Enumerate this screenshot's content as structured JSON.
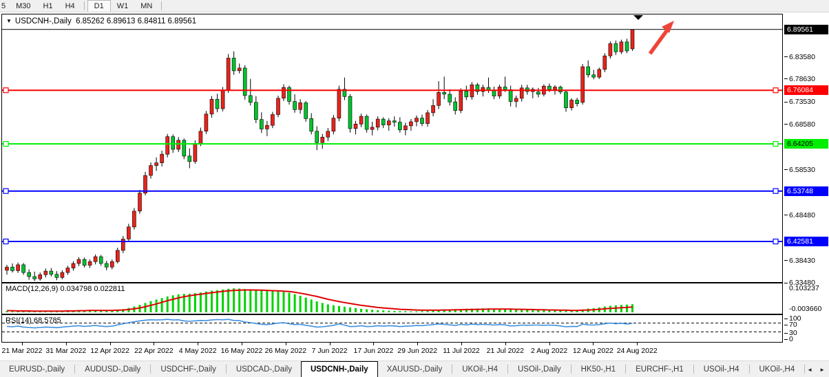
{
  "toolbar": {
    "timeframes": [
      {
        "label": "5",
        "active": false
      },
      {
        "label": "M30",
        "active": false
      },
      {
        "label": "H1",
        "active": false
      },
      {
        "label": "H4",
        "active": false
      },
      {
        "label": "D1",
        "active": true
      },
      {
        "label": "W1",
        "active": false
      },
      {
        "label": "MN",
        "active": false
      }
    ]
  },
  "chart": {
    "title_symbol": "USDCNH-,Daily",
    "title_ohlc": "6.85262 6.89613 6.84811 6.89561",
    "dropdown_icon": "▼",
    "current_price": {
      "value": 6.89561,
      "label": "6.89561",
      "badge_bg": "#000000",
      "badge_text": "#ffffff"
    },
    "colors": {
      "bull_candle": "#e8241c",
      "bear_candle": "#00c32e",
      "wick": "#000000",
      "arrow_annotation": "#ef4438"
    },
    "y_axis_ticks": [
      6.8358,
      6.7863,
      6.7353,
      6.6858,
      6.5853,
      6.4848,
      6.3843,
      6.3348
    ],
    "hlines": [
      {
        "price": 6.76084,
        "label": "6.76084",
        "color": "#ff0000",
        "text": "#ffffff"
      },
      {
        "price": 6.64205,
        "label": "6.64205",
        "color": "#00ee00",
        "text": "#000000"
      },
      {
        "price": 6.53748,
        "label": "6.53748",
        "color": "#0000ff",
        "text": "#ffffff"
      },
      {
        "price": 6.42581,
        "label": "6.42581",
        "color": "#0000ff",
        "text": "#ffffff"
      }
    ],
    "x_axis_dates": [
      "21 Mar 2022",
      "31 Mar 2022",
      "12 Apr 2022",
      "22 Apr 2022",
      "4 May 2022",
      "16 May 2022",
      "26 May 2022",
      "7 Jun 2022",
      "17 Jun 2022",
      "29 Jun 2022",
      "11 Jul 2022",
      "21 Jul 2022",
      "2 Aug 2022",
      "12 Aug 2022",
      "24 Aug 2022"
    ]
  },
  "chart_data": {
    "type": "candlestick+indicators",
    "title": "USDCNH-,Daily",
    "ohlc_current": {
      "open": 6.85262,
      "high": 6.89613,
      "low": 6.84811,
      "close": 6.89561
    },
    "ylim": [
      6.3348,
      6.9288
    ],
    "xlabels": [
      "21 Mar 2022",
      "31 Mar 2022",
      "12 Apr 2022",
      "22 Apr 2022",
      "4 May 2022",
      "16 May 2022",
      "26 May 2022",
      "7 Jun 2022",
      "17 Jun 2022",
      "29 Jun 2022",
      "11 Jul 2022",
      "21 Jul 2022",
      "2 Aug 2022",
      "12 Aug 2022",
      "24 Aug 2022"
    ],
    "candles": [
      [
        6.362,
        6.374,
        6.352,
        6.369
      ],
      [
        6.369,
        6.377,
        6.357,
        6.361
      ],
      [
        6.361,
        6.379,
        6.356,
        6.374
      ],
      [
        6.374,
        6.378,
        6.352,
        6.357
      ],
      [
        6.357,
        6.364,
        6.341,
        6.348
      ],
      [
        6.348,
        6.359,
        6.338,
        6.343
      ],
      [
        6.343,
        6.357,
        6.339,
        6.352
      ],
      [
        6.352,
        6.366,
        6.346,
        6.36
      ],
      [
        6.36,
        6.367,
        6.348,
        6.353
      ],
      [
        6.353,
        6.36,
        6.34,
        6.346
      ],
      [
        6.346,
        6.362,
        6.342,
        6.357
      ],
      [
        6.357,
        6.372,
        6.352,
        6.367
      ],
      [
        6.367,
        6.382,
        6.361,
        6.377
      ],
      [
        6.377,
        6.391,
        6.371,
        6.386
      ],
      [
        6.386,
        6.39,
        6.368,
        6.373
      ],
      [
        6.373,
        6.386,
        6.367,
        6.381
      ],
      [
        6.381,
        6.397,
        6.375,
        6.392
      ],
      [
        6.392,
        6.396,
        6.372,
        6.377
      ],
      [
        6.377,
        6.383,
        6.362,
        6.369
      ],
      [
        6.369,
        6.386,
        6.364,
        6.381
      ],
      [
        6.381,
        6.412,
        6.377,
        6.406
      ],
      [
        6.406,
        6.438,
        6.4,
        6.431
      ],
      [
        6.431,
        6.465,
        6.425,
        6.458
      ],
      [
        6.458,
        6.5,
        6.452,
        6.493
      ],
      [
        6.493,
        6.54,
        6.487,
        6.533
      ],
      [
        6.533,
        6.58,
        6.528,
        6.572
      ],
      [
        6.572,
        6.601,
        6.565,
        6.594
      ],
      [
        6.594,
        6.612,
        6.582,
        6.6
      ],
      [
        6.6,
        6.627,
        6.592,
        6.619
      ],
      [
        6.619,
        6.664,
        6.612,
        6.658
      ],
      [
        6.658,
        6.663,
        6.622,
        6.63
      ],
      [
        6.63,
        6.657,
        6.624,
        6.65
      ],
      [
        6.65,
        6.654,
        6.608,
        6.615
      ],
      [
        6.615,
        6.632,
        6.588,
        6.603
      ],
      [
        6.603,
        6.65,
        6.598,
        6.643
      ],
      [
        6.643,
        6.678,
        6.637,
        6.67
      ],
      [
        6.67,
        6.715,
        6.664,
        6.708
      ],
      [
        6.708,
        6.748,
        6.7,
        6.741
      ],
      [
        6.741,
        6.753,
        6.712,
        6.72
      ],
      [
        6.72,
        6.768,
        6.714,
        6.761
      ],
      [
        6.761,
        6.841,
        6.755,
        6.832
      ],
      [
        6.832,
        6.847,
        6.795,
        6.804
      ],
      [
        6.804,
        6.82,
        6.798,
        6.81
      ],
      [
        6.81,
        6.816,
        6.74,
        6.749
      ],
      [
        6.749,
        6.786,
        6.727,
        6.734
      ],
      [
        6.734,
        6.748,
        6.688,
        6.696
      ],
      [
        6.696,
        6.712,
        6.666,
        6.675
      ],
      [
        6.675,
        6.693,
        6.659,
        6.683
      ],
      [
        6.683,
        6.713,
        6.677,
        6.707
      ],
      [
        6.707,
        6.749,
        6.701,
        6.743
      ],
      [
        6.743,
        6.774,
        6.737,
        6.767
      ],
      [
        6.767,
        6.771,
        6.729,
        6.736
      ],
      [
        6.736,
        6.752,
        6.711,
        6.718
      ],
      [
        6.718,
        6.741,
        6.709,
        6.733
      ],
      [
        6.733,
        6.737,
        6.691,
        6.698
      ],
      [
        6.698,
        6.71,
        6.663,
        6.67
      ],
      [
        6.67,
        6.681,
        6.628,
        6.645
      ],
      [
        6.645,
        6.664,
        6.631,
        6.657
      ],
      [
        6.657,
        6.677,
        6.648,
        6.67
      ],
      [
        6.67,
        6.706,
        6.663,
        6.699
      ],
      [
        6.699,
        6.771,
        6.692,
        6.763
      ],
      [
        6.763,
        6.789,
        6.739,
        6.747
      ],
      [
        6.747,
        6.752,
        6.667,
        6.676
      ],
      [
        6.676,
        6.693,
        6.663,
        6.686
      ],
      [
        6.686,
        6.709,
        6.679,
        6.703
      ],
      [
        6.703,
        6.707,
        6.667,
        6.674
      ],
      [
        6.674,
        6.691,
        6.661,
        6.679
      ],
      [
        6.679,
        6.703,
        6.672,
        6.697
      ],
      [
        6.697,
        6.701,
        6.677,
        6.684
      ],
      [
        6.684,
        6.699,
        6.671,
        6.693
      ],
      [
        6.693,
        6.703,
        6.68,
        6.69
      ],
      [
        6.69,
        6.701,
        6.667,
        6.673
      ],
      [
        6.673,
        6.689,
        6.661,
        6.682
      ],
      [
        6.682,
        6.697,
        6.671,
        6.691
      ],
      [
        6.691,
        6.705,
        6.681,
        6.699
      ],
      [
        6.699,
        6.707,
        6.681,
        6.687
      ],
      [
        6.687,
        6.717,
        6.68,
        6.711
      ],
      [
        6.711,
        6.741,
        6.703,
        6.727
      ],
      [
        6.727,
        6.781,
        6.719,
        6.756
      ],
      [
        6.756,
        6.791,
        6.741,
        6.752
      ],
      [
        6.752,
        6.763,
        6.727,
        6.735
      ],
      [
        6.735,
        6.745,
        6.707,
        6.716
      ],
      [
        6.716,
        6.765,
        6.71,
        6.759
      ],
      [
        6.759,
        6.771,
        6.739,
        6.746
      ],
      [
        6.746,
        6.779,
        6.74,
        6.773
      ],
      [
        6.773,
        6.777,
        6.751,
        6.758
      ],
      [
        6.758,
        6.773,
        6.747,
        6.767
      ],
      [
        6.767,
        6.789,
        6.755,
        6.76
      ],
      [
        6.76,
        6.769,
        6.741,
        6.748
      ],
      [
        6.748,
        6.773,
        6.742,
        6.768
      ],
      [
        6.768,
        6.791,
        6.757,
        6.762
      ],
      [
        6.762,
        6.771,
        6.725,
        6.736
      ],
      [
        6.736,
        6.749,
        6.723,
        6.743
      ],
      [
        6.743,
        6.773,
        6.736,
        6.766
      ],
      [
        6.766,
        6.773,
        6.751,
        6.758
      ],
      [
        6.758,
        6.767,
        6.743,
        6.763
      ],
      [
        6.757,
        6.766,
        6.745,
        6.752
      ],
      [
        6.752,
        6.774,
        6.747,
        6.77
      ],
      [
        6.77,
        6.776,
        6.757,
        6.762
      ],
      [
        6.762,
        6.772,
        6.751,
        6.768
      ],
      [
        6.768,
        6.771,
        6.752,
        6.757
      ],
      [
        6.757,
        6.76,
        6.713,
        6.722
      ],
      [
        6.722,
        6.743,
        6.716,
        6.739
      ],
      [
        6.739,
        6.744,
        6.725,
        6.731
      ],
      [
        6.734,
        6.819,
        6.729,
        6.813
      ],
      [
        6.813,
        6.827,
        6.789,
        6.795
      ],
      [
        6.795,
        6.806,
        6.785,
        6.79
      ],
      [
        6.79,
        6.811,
        6.786,
        6.807
      ],
      [
        6.807,
        6.843,
        6.801,
        6.837
      ],
      [
        6.837,
        6.869,
        6.831,
        6.864
      ],
      [
        6.864,
        6.871,
        6.839,
        6.846
      ],
      [
        6.846,
        6.873,
        6.841,
        6.868
      ],
      [
        6.868,
        6.875,
        6.843,
        6.848
      ],
      [
        6.85262,
        6.89613,
        6.84811,
        6.89561
      ]
    ]
  },
  "macd": {
    "label": "MACD(12,26,9) 0.034798 0.022811",
    "max_label": "0.103237",
    "min_label": "-0.003660",
    "hist_color": "#00d200",
    "signal_color": "#e00000",
    "histogram": [
      0.006,
      0.005,
      0.006,
      0.005,
      0.004,
      0.004,
      0.004,
      0.005,
      0.005,
      0.004,
      0.005,
      0.006,
      0.007,
      0.008,
      0.008,
      0.008,
      0.009,
      0.009,
      0.008,
      0.008,
      0.01,
      0.014,
      0.019,
      0.025,
      0.032,
      0.04,
      0.048,
      0.055,
      0.061,
      0.068,
      0.073,
      0.077,
      0.079,
      0.08,
      0.082,
      0.085,
      0.089,
      0.093,
      0.095,
      0.098,
      0.101,
      0.103,
      0.102,
      0.1,
      0.099,
      0.097,
      0.094,
      0.092,
      0.091,
      0.09,
      0.088,
      0.084,
      0.078,
      0.071,
      0.063,
      0.055,
      0.047,
      0.04,
      0.034,
      0.03,
      0.027,
      0.024,
      0.021,
      0.018,
      0.015,
      0.013,
      0.011,
      0.009,
      0.008,
      0.007,
      0.006,
      0.005,
      0.005,
      0.004,
      0.004,
      0.005,
      0.006,
      0.008,
      0.01,
      0.012,
      0.013,
      0.013,
      0.014,
      0.015,
      0.016,
      0.016,
      0.017,
      0.017,
      0.016,
      0.016,
      0.015,
      0.014,
      0.013,
      0.012,
      0.011,
      0.01,
      0.009,
      0.009,
      0.008,
      0.008,
      0.007,
      0.006,
      0.006,
      0.007,
      0.012,
      0.016,
      0.018,
      0.021,
      0.025,
      0.028,
      0.03,
      0.032,
      0.033,
      0.0348
    ],
    "signal": [
      0.007,
      0.007,
      0.006,
      0.006,
      0.006,
      0.005,
      0.005,
      0.005,
      0.005,
      0.005,
      0.005,
      0.006,
      0.006,
      0.007,
      0.007,
      0.008,
      0.008,
      0.008,
      0.008,
      0.008,
      0.009,
      0.01,
      0.012,
      0.015,
      0.019,
      0.024,
      0.03,
      0.036,
      0.043,
      0.05,
      0.056,
      0.062,
      0.067,
      0.071,
      0.075,
      0.078,
      0.081,
      0.084,
      0.087,
      0.09,
      0.092,
      0.094,
      0.095,
      0.096,
      0.096,
      0.0955,
      0.095,
      0.094,
      0.093,
      0.092,
      0.091,
      0.089,
      0.086,
      0.082,
      0.078,
      0.073,
      0.068,
      0.062,
      0.056,
      0.051,
      0.046,
      0.042,
      0.038,
      0.034,
      0.03,
      0.027,
      0.024,
      0.021,
      0.019,
      0.017,
      0.015,
      0.013,
      0.012,
      0.011,
      0.01,
      0.009,
      0.009,
      0.009,
      0.009,
      0.01,
      0.01,
      0.011,
      0.011,
      0.012,
      0.012,
      0.013,
      0.013,
      0.014,
      0.014,
      0.014,
      0.014,
      0.014,
      0.013,
      0.013,
      0.012,
      0.012,
      0.011,
      0.011,
      0.01,
      0.01,
      0.009,
      0.009,
      0.008,
      0.008,
      0.009,
      0.01,
      0.011,
      0.013,
      0.015,
      0.017,
      0.018,
      0.02,
      0.021,
      0.0228
    ]
  },
  "rsi": {
    "label": "RSI(14) 68.5785",
    "line_color": "#3e8fdf",
    "levels": [
      "100",
      "70",
      "30",
      "0"
    ],
    "values": [
      55,
      53,
      56,
      52,
      50,
      48,
      50,
      52,
      51,
      49,
      52,
      54,
      56,
      58,
      55,
      57,
      59,
      56,
      54,
      56,
      62,
      67,
      72,
      76,
      80,
      83,
      85,
      84,
      85,
      87,
      84,
      85,
      80,
      78,
      80,
      82,
      81,
      84,
      86,
      85,
      87,
      82,
      81,
      75,
      72,
      68,
      64,
      63,
      66,
      70,
      72,
      67,
      63,
      64,
      60,
      56,
      52,
      53,
      56,
      60,
      66,
      61,
      54,
      55,
      58,
      54,
      55,
      58,
      56,
      58,
      57,
      54,
      56,
      57,
      59,
      58,
      61,
      63,
      66,
      64,
      62,
      59,
      64,
      62,
      65,
      63,
      64,
      63,
      61,
      63,
      62,
      57,
      58,
      61,
      60,
      61,
      61,
      60,
      61,
      60,
      57,
      53,
      55,
      54,
      65,
      62,
      61,
      63,
      67,
      70,
      67,
      69,
      66,
      68.6
    ]
  },
  "tabbar": {
    "tabs": [
      {
        "label": "EURUSD-,Daily",
        "active": false
      },
      {
        "label": "AUDUSD-,Daily",
        "active": false
      },
      {
        "label": "USDCHF-,Daily",
        "active": false
      },
      {
        "label": "USDCAD-,Daily",
        "active": false
      },
      {
        "label": "USDCNH-,Daily",
        "active": true
      },
      {
        "label": "XAUUSD-,Daily",
        "active": false
      },
      {
        "label": "UKOil-,H4",
        "active": false
      },
      {
        "label": "USOil-,Daily",
        "active": false
      },
      {
        "label": "HK50-,H1",
        "active": false
      },
      {
        "label": "EURCHF-,H1",
        "active": false
      },
      {
        "label": "USOil-,H4",
        "active": false
      },
      {
        "label": "UKOil-,H4",
        "active": false
      }
    ],
    "nav_left": "◄",
    "nav_right": "►"
  }
}
